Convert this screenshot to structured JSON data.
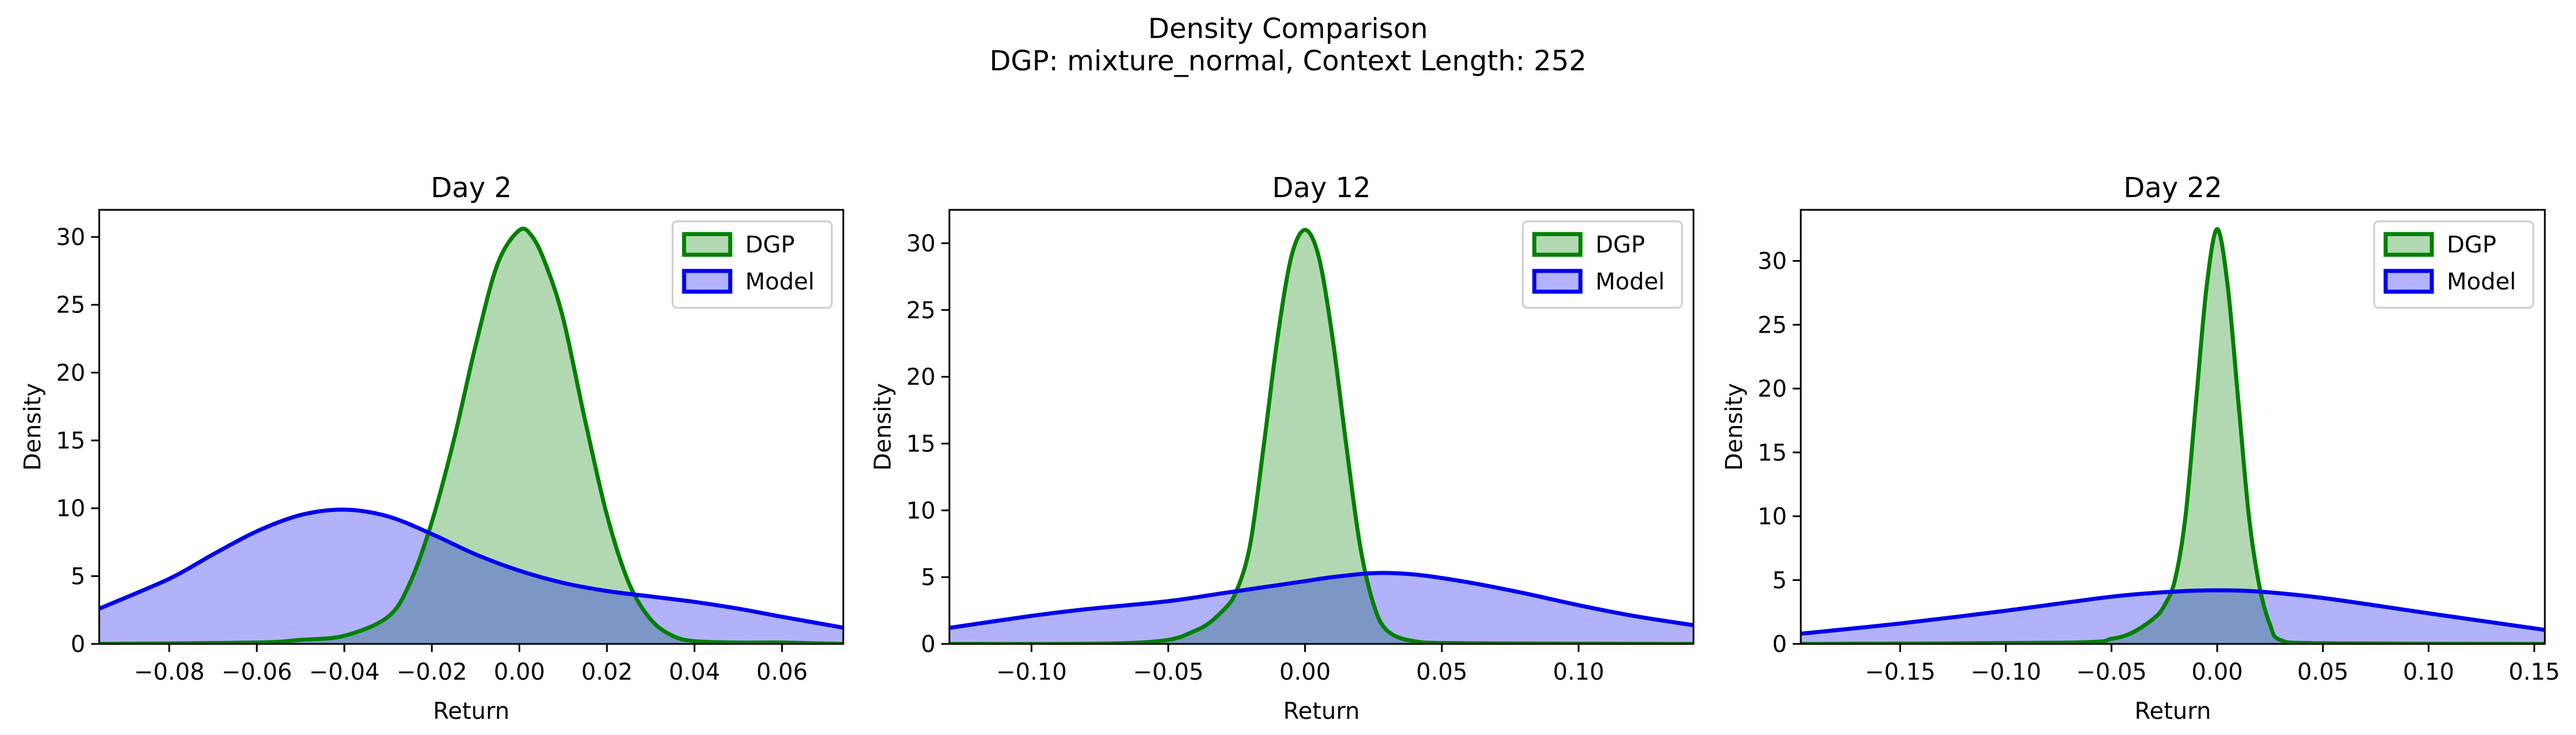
{
  "figure": {
    "title": "Density Comparison",
    "subtitle": "DGP: mixture_normal, Context Length: 252"
  },
  "colors": {
    "dgp_line": "#008000",
    "dgp_fill": "#b2d8b2",
    "model_line": "#0000ee",
    "model_fill": "#b2b2ff",
    "overlap_fill": "#7f9bcb"
  },
  "chart_data": [
    {
      "type": "area",
      "title": "Day 2",
      "xlabel": "Return",
      "ylabel": "Density",
      "xlim": [
        -0.096,
        0.074
      ],
      "ylim": [
        0,
        32
      ],
      "xticks": [
        -0.08,
        -0.06,
        -0.04,
        -0.02,
        0.0,
        0.02,
        0.04,
        0.06
      ],
      "xticklabels": [
        "−0.08",
        "−0.06",
        "−0.04",
        "−0.02",
        "0.00",
        "0.02",
        "0.04",
        "0.06"
      ],
      "yticks": [
        0,
        5,
        10,
        15,
        20,
        25,
        30
      ],
      "yticklabels": [
        "0",
        "5",
        "10",
        "15",
        "20",
        "25",
        "30"
      ],
      "legend": {
        "position": "top-right",
        "entries": [
          "DGP",
          "Model"
        ]
      },
      "series": [
        {
          "name": "DGP",
          "x": [
            -0.096,
            -0.06,
            -0.05,
            -0.04,
            -0.03,
            -0.025,
            -0.02,
            -0.015,
            -0.01,
            -0.005,
            0.0,
            0.003,
            0.006,
            0.01,
            0.015,
            0.02,
            0.025,
            0.03,
            0.035,
            0.04,
            0.05,
            0.06,
            0.074
          ],
          "y": [
            0,
            0.1,
            0.3,
            0.6,
            2.0,
            4.5,
            9.0,
            15.0,
            22.0,
            28.0,
            30.5,
            30.0,
            28.0,
            24.0,
            16.5,
            9.5,
            4.5,
            1.8,
            0.6,
            0.2,
            0.1,
            0.1,
            0
          ]
        },
        {
          "name": "Model",
          "x": [
            -0.096,
            -0.08,
            -0.07,
            -0.06,
            -0.05,
            -0.04,
            -0.03,
            -0.02,
            -0.01,
            0.0,
            0.01,
            0.02,
            0.03,
            0.04,
            0.05,
            0.06,
            0.074
          ],
          "y": [
            2.6,
            4.8,
            6.6,
            8.3,
            9.5,
            9.9,
            9.4,
            8.1,
            6.6,
            5.4,
            4.5,
            3.9,
            3.5,
            3.1,
            2.6,
            2.0,
            1.2
          ]
        }
      ]
    },
    {
      "type": "area",
      "title": "Day 12",
      "xlabel": "Return",
      "ylabel": "Density",
      "xlim": [
        -0.13,
        0.142
      ],
      "ylim": [
        0,
        32.5
      ],
      "xticks": [
        -0.1,
        -0.05,
        0.0,
        0.05,
        0.1
      ],
      "xticklabels": [
        "−0.10",
        "−0.05",
        "0.00",
        "0.05",
        "0.10"
      ],
      "yticks": [
        0,
        5,
        10,
        15,
        20,
        25,
        30
      ],
      "yticklabels": [
        "0",
        "5",
        "10",
        "15",
        "20",
        "25",
        "30"
      ],
      "legend": {
        "position": "top-right",
        "entries": [
          "DGP",
          "Model"
        ]
      },
      "series": [
        {
          "name": "DGP",
          "x": [
            -0.13,
            -0.06,
            -0.04,
            -0.03,
            -0.025,
            -0.02,
            -0.015,
            -0.01,
            -0.005,
            0.0,
            0.005,
            0.01,
            0.015,
            0.02,
            0.025,
            0.03,
            0.04,
            0.06,
            0.142
          ],
          "y": [
            0,
            0.1,
            1.0,
            2.5,
            4.0,
            7.5,
            15.0,
            23.0,
            29.0,
            31.0,
            29.0,
            23.0,
            15.0,
            7.5,
            3.0,
            1.0,
            0.2,
            0.05,
            0
          ]
        },
        {
          "name": "Model",
          "x": [
            -0.13,
            -0.1,
            -0.08,
            -0.05,
            -0.03,
            -0.01,
            0.0,
            0.01,
            0.025,
            0.04,
            0.06,
            0.08,
            0.1,
            0.12,
            0.142
          ],
          "y": [
            1.2,
            2.1,
            2.6,
            3.2,
            3.8,
            4.4,
            4.7,
            5.0,
            5.3,
            5.2,
            4.6,
            3.8,
            2.9,
            2.1,
            1.4
          ]
        }
      ]
    },
    {
      "type": "area",
      "title": "Day 22",
      "xlabel": "Return",
      "ylabel": "Density",
      "xlim": [
        -0.197,
        0.155
      ],
      "ylim": [
        0,
        34
      ],
      "xticks": [
        -0.15,
        -0.1,
        -0.05,
        0.0,
        0.05,
        0.1,
        0.15
      ],
      "xticklabels": [
        "−0.15",
        "−0.10",
        "−0.05",
        "0.00",
        "0.05",
        "0.10",
        "0.15"
      ],
      "yticks": [
        0,
        5,
        10,
        15,
        20,
        25,
        30
      ],
      "yticklabels": [
        "0",
        "5",
        "10",
        "15",
        "20",
        "25",
        "30"
      ],
      "legend": {
        "position": "top-right",
        "entries": [
          "DGP",
          "Model"
        ]
      },
      "series": [
        {
          "name": "DGP",
          "x": [
            -0.197,
            -0.07,
            -0.05,
            -0.04,
            -0.03,
            -0.025,
            -0.02,
            -0.015,
            -0.01,
            -0.005,
            0.0,
            0.005,
            0.01,
            0.015,
            0.02,
            0.025,
            0.03,
            0.05,
            0.155
          ],
          "y": [
            0,
            0.1,
            0.4,
            0.9,
            2.0,
            3.0,
            5.0,
            10.0,
            19.0,
            28.0,
            32.5,
            28.0,
            19.0,
            10.0,
            4.5,
            1.5,
            0.3,
            0.05,
            0
          ]
        },
        {
          "name": "Model",
          "x": [
            -0.197,
            -0.15,
            -0.1,
            -0.05,
            -0.02,
            0.0,
            0.02,
            0.05,
            0.1,
            0.155
          ],
          "y": [
            0.8,
            1.6,
            2.6,
            3.7,
            4.1,
            4.2,
            4.1,
            3.6,
            2.4,
            1.1
          ]
        }
      ]
    }
  ]
}
